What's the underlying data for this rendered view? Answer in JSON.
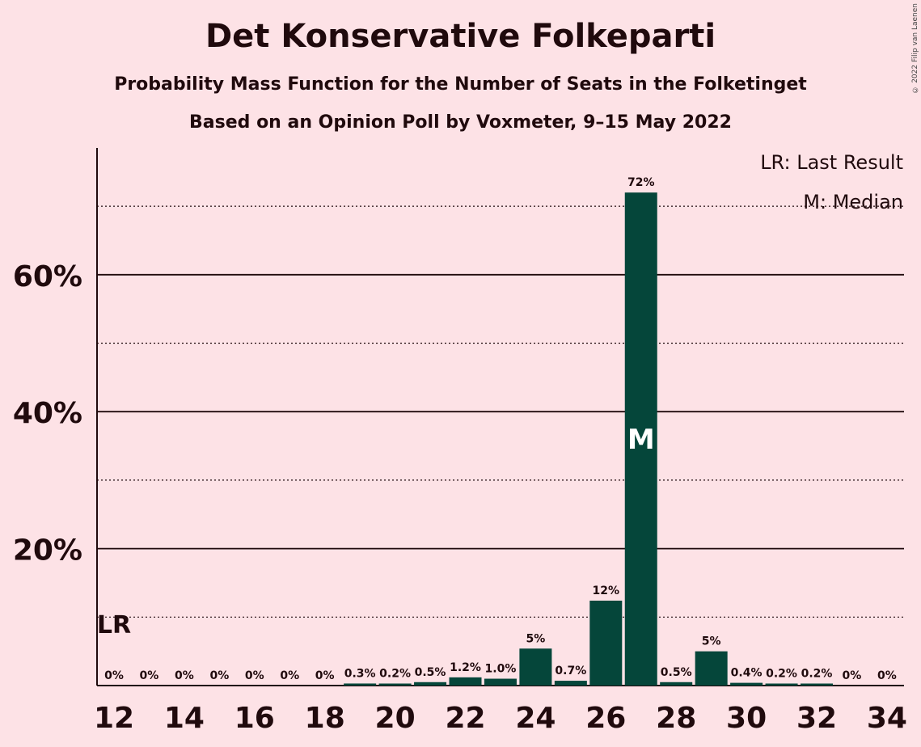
{
  "title": "Det Konservative Folkeparti",
  "subtitle": "Probability Mass Function for the Number of Seats in the Folketinget",
  "subtitle2": "Based on an Opinion Poll by Voxmeter, 9–15 May 2022",
  "copyright": "© 2022 Filip van Laenen",
  "legend": {
    "lr": "LR: Last Result",
    "m": "M: Median"
  },
  "colors": {
    "bar": "#05463a",
    "background": "#fde2e6",
    "text": "#200a0d"
  },
  "chart_data": {
    "type": "bar",
    "categories": [
      12,
      13,
      14,
      15,
      16,
      17,
      18,
      19,
      20,
      21,
      22,
      23,
      24,
      25,
      26,
      27,
      28,
      29,
      30,
      31,
      32,
      33,
      34
    ],
    "values": [
      0,
      0,
      0,
      0,
      0,
      0,
      0,
      0.3,
      0.2,
      0.5,
      1.2,
      1.0,
      5.4,
      0.7,
      12.4,
      72.0,
      0.5,
      5.0,
      0.4,
      0.2,
      0.2,
      0,
      0
    ],
    "value_labels": [
      "0%",
      "0%",
      "0%",
      "0%",
      "0%",
      "0%",
      "0%",
      "0.3%",
      "0.2%",
      "0.5%",
      "1.2%",
      "1.0%",
      "5%",
      "0.7%",
      "12%",
      "72%",
      "0.5%",
      "5%",
      "0.4%",
      "0.2%",
      "0.2%",
      "0%",
      "0%"
    ],
    "xtick_labels": [
      "12",
      "14",
      "16",
      "18",
      "20",
      "22",
      "24",
      "26",
      "28",
      "30",
      "32",
      "34"
    ],
    "xticks": [
      12,
      14,
      16,
      18,
      20,
      22,
      24,
      26,
      28,
      30,
      32,
      34
    ],
    "yticks": [
      20,
      40,
      60
    ],
    "ytick_labels": [
      "20%",
      "40%",
      "60%"
    ],
    "dotted_gridlines": [
      10,
      30,
      50,
      70
    ],
    "ylim": [
      0,
      78
    ],
    "last_result": 12,
    "last_result_label": "LR",
    "median": 27,
    "median_label": "M"
  }
}
